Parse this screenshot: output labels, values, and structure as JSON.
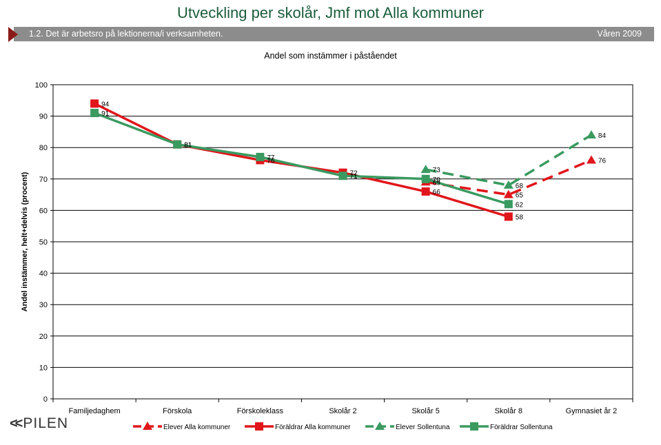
{
  "header": {
    "title": "Utveckling per skolår, Jmf mot Alla kommuner",
    "question": "1.2.  Det är arbetsro på lektionerna/i verksamheten.",
    "period": "Våren 2009",
    "logo": "PILEN"
  },
  "colors": {
    "red": "#e0161b",
    "green": "#3a9a60",
    "banner": "#8c8c8c",
    "title": "#1a5c3a"
  },
  "chart_data": {
    "type": "line",
    "title": "Andel som instämmer i påståendet",
    "ylabel": "Andel instämmer, helt+delvis (procent)",
    "xlabel": "",
    "ylim": [
      0,
      100
    ],
    "yticks": [
      0,
      10,
      20,
      30,
      40,
      50,
      60,
      70,
      80,
      90,
      100
    ],
    "grid": true,
    "legend_position": "bottom",
    "categories": [
      "Familjedaghem",
      "Förskola",
      "Förskoleklass",
      "Skolår 2",
      "Skolår 5",
      "Skolår 8",
      "Gymnasiet år 2"
    ],
    "series": [
      {
        "name": "Elever Alla kommuner",
        "color": "#e0161b",
        "dashed": true,
        "marker": "triangle",
        "values": [
          null,
          null,
          null,
          null,
          69,
          65,
          76
        ]
      },
      {
        "name": "Föräldrar Alla kommuner",
        "color": "#e0161b",
        "dashed": false,
        "marker": "square",
        "values": [
          94,
          81,
          76,
          72,
          66,
          58,
          null
        ]
      },
      {
        "name": "Elever Sollentuna",
        "color": "#3a9a60",
        "dashed": true,
        "marker": "triangle",
        "values": [
          null,
          null,
          null,
          null,
          73,
          68,
          84
        ]
      },
      {
        "name": "Föräldrar Sollentuna",
        "color": "#3a9a60",
        "dashed": false,
        "marker": "square",
        "values": [
          91,
          81,
          77,
          71,
          70,
          62,
          null
        ]
      }
    ]
  }
}
